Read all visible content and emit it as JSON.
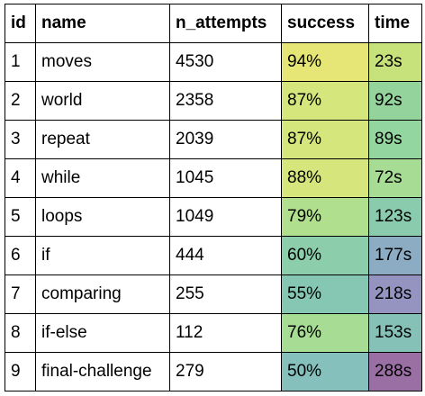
{
  "table": {
    "headers": [
      "id",
      "name",
      "n_attempts",
      "success",
      "time"
    ],
    "rows": [
      {
        "id": "1",
        "name": "moves",
        "n_attempts": "4530",
        "success": "94%",
        "time": "23s",
        "success_color": "#e6e676",
        "time_color": "#c7e27a"
      },
      {
        "id": "2",
        "name": "world",
        "n_attempts": "2358",
        "success": "87%",
        "time": "92s",
        "success_color": "#d4e67c",
        "time_color": "#94d49c"
      },
      {
        "id": "3",
        "name": "repeat",
        "n_attempts": "2039",
        "success": "87%",
        "time": "89s",
        "success_color": "#d4e67c",
        "time_color": "#94d6a0"
      },
      {
        "id": "4",
        "name": "while",
        "n_attempts": "1045",
        "success": "88%",
        "time": "72s",
        "success_color": "#d6e67c",
        "time_color": "#a6dc94"
      },
      {
        "id": "5",
        "name": "loops",
        "n_attempts": "1049",
        "success": "79%",
        "time": "123s",
        "success_color": "#b0df8e",
        "time_color": "#89cbac"
      },
      {
        "id": "6",
        "name": "if",
        "n_attempts": "444",
        "success": "60%",
        "time": "177s",
        "success_color": "#8ccdac",
        "time_color": "#8cacc4"
      },
      {
        "id": "7",
        "name": "comparing",
        "n_attempts": "255",
        "success": "55%",
        "time": "218s",
        "success_color": "#86c7b4",
        "time_color": "#9594c0"
      },
      {
        "id": "8",
        "name": "if-else",
        "n_attempts": "112",
        "success": "76%",
        "time": "153s",
        "success_color": "#a6dc94",
        "time_color": "#86c1b8"
      },
      {
        "id": "9",
        "name": "final-challenge",
        "n_attempts": "279",
        "success": "50%",
        "time": "288s",
        "success_color": "#86c0bc",
        "time_color": "#9a6fa4"
      }
    ]
  }
}
